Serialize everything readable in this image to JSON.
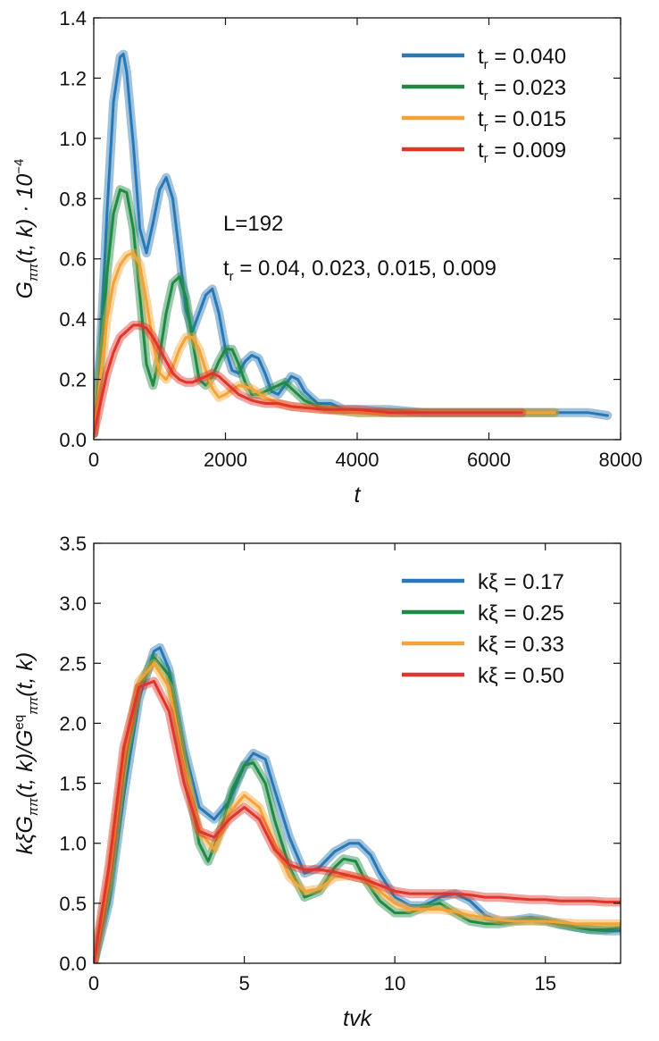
{
  "chart_data": [
    {
      "type": "line",
      "xlabel": "t",
      "ylabel_main": "G",
      "ylabel_sub": "ππ",
      "ylabel_rest": "(t, k) · 10",
      "ylabel_exp": "−4",
      "xlim": [
        0,
        8000
      ],
      "ylim": [
        0,
        1.4
      ],
      "xticks": [
        0,
        2000,
        4000,
        6000,
        8000
      ],
      "xtick_labels": [
        "0",
        "2000",
        "4000",
        "6000",
        "8000"
      ],
      "yticks": [
        0,
        0.2,
        0.4,
        0.6,
        0.8,
        1.0,
        1.2,
        1.4
      ],
      "ytick_labels": [
        "0.0",
        "0.2",
        "0.4",
        "0.6",
        "0.8",
        "1.0",
        "1.2",
        "1.4"
      ],
      "grid": false,
      "legend_position": "top-right",
      "annotations": [
        {
          "text": "L=192"
        },
        {
          "text": "t",
          "sub": "r",
          "rest": " = 0.04, 0.023, 0.015, 0.009"
        }
      ],
      "series": [
        {
          "name": "t",
          "name_sub": "r",
          "name_rest": " = 0.040",
          "color": "#2878b5",
          "x": [
            0,
            100,
            200,
            300,
            400,
            450,
            500,
            600,
            700,
            800,
            900,
            1000,
            1100,
            1200,
            1300,
            1400,
            1500,
            1600,
            1700,
            1800,
            1900,
            2000,
            2100,
            2200,
            2300,
            2400,
            2500,
            2600,
            2700,
            2800,
            2900,
            3000,
            3100,
            3200,
            3400,
            3600,
            3800,
            4000,
            4500,
            5000,
            5500,
            6000,
            6500,
            7000,
            7500,
            7800
          ],
          "y": [
            0.02,
            0.3,
            0.75,
            1.12,
            1.27,
            1.28,
            1.22,
            0.98,
            0.7,
            0.62,
            0.72,
            0.83,
            0.87,
            0.8,
            0.62,
            0.43,
            0.36,
            0.42,
            0.48,
            0.5,
            0.42,
            0.3,
            0.23,
            0.22,
            0.26,
            0.28,
            0.27,
            0.22,
            0.16,
            0.15,
            0.18,
            0.21,
            0.2,
            0.16,
            0.12,
            0.12,
            0.1,
            0.1,
            0.1,
            0.09,
            0.09,
            0.09,
            0.09,
            0.09,
            0.09,
            0.08
          ]
        },
        {
          "name": "t",
          "name_sub": "r",
          "name_rest": " = 0.023",
          "color": "#1e8a44",
          "x": [
            0,
            100,
            200,
            300,
            400,
            500,
            600,
            700,
            800,
            900,
            1000,
            1100,
            1200,
            1300,
            1400,
            1500,
            1600,
            1700,
            1800,
            1900,
            2000,
            2100,
            2200,
            2300,
            2400,
            2500,
            2600,
            2700,
            2800,
            2900,
            3000,
            3200,
            3400,
            3600,
            4000,
            4500,
            5000,
            5500,
            6000,
            6500,
            7000
          ],
          "y": [
            0.02,
            0.25,
            0.55,
            0.75,
            0.83,
            0.82,
            0.7,
            0.48,
            0.25,
            0.18,
            0.28,
            0.42,
            0.52,
            0.54,
            0.47,
            0.33,
            0.2,
            0.18,
            0.21,
            0.26,
            0.3,
            0.3,
            0.25,
            0.19,
            0.15,
            0.15,
            0.16,
            0.17,
            0.18,
            0.19,
            0.17,
            0.13,
            0.11,
            0.1,
            0.09,
            0.09,
            0.09,
            0.09,
            0.09,
            0.09,
            0.09
          ]
        },
        {
          "name": "t",
          "name_sub": "r",
          "name_rest": " = 0.015",
          "color": "#f5a336",
          "x": [
            0,
            100,
            200,
            300,
            400,
            500,
            600,
            700,
            800,
            900,
            1000,
            1100,
            1200,
            1300,
            1400,
            1500,
            1600,
            1700,
            1800,
            1900,
            2000,
            2200,
            2400,
            2600,
            2800,
            3000,
            3500,
            4000,
            4500,
            5000,
            5500,
            6000,
            6500,
            7000
          ],
          "y": [
            0.02,
            0.2,
            0.4,
            0.52,
            0.58,
            0.61,
            0.62,
            0.58,
            0.46,
            0.32,
            0.22,
            0.2,
            0.24,
            0.3,
            0.34,
            0.34,
            0.3,
            0.23,
            0.17,
            0.14,
            0.15,
            0.18,
            0.17,
            0.14,
            0.12,
            0.11,
            0.1,
            0.09,
            0.09,
            0.09,
            0.09,
            0.09,
            0.09,
            0.09
          ]
        },
        {
          "name": "t",
          "name_sub": "r",
          "name_rest": " = 0.009",
          "color": "#e0352b",
          "x": [
            0,
            100,
            200,
            300,
            400,
            500,
            600,
            700,
            800,
            900,
            1000,
            1100,
            1200,
            1300,
            1400,
            1500,
            1600,
            1700,
            1800,
            1900,
            2000,
            2200,
            2400,
            2600,
            2800,
            3000,
            3500,
            4000,
            4500,
            5000,
            5500,
            6000,
            6500
          ],
          "y": [
            0.02,
            0.12,
            0.22,
            0.29,
            0.34,
            0.36,
            0.38,
            0.38,
            0.37,
            0.34,
            0.3,
            0.26,
            0.22,
            0.2,
            0.19,
            0.19,
            0.2,
            0.21,
            0.22,
            0.21,
            0.19,
            0.15,
            0.13,
            0.12,
            0.12,
            0.11,
            0.1,
            0.1,
            0.09,
            0.09,
            0.09,
            0.09,
            0.09
          ]
        }
      ]
    },
    {
      "type": "line",
      "xlabel": "tvk",
      "ylabel_main": "kξG",
      "ylabel_sub": "ππ",
      "ylabel_rest": "(t, k)/G",
      "ylabel_sup2": "eq",
      "ylabel_sub2": "ππ",
      "ylabel_rest2": "(t, k)",
      "xlim": [
        0,
        17.5
      ],
      "ylim": [
        0,
        3.5
      ],
      "xticks": [
        0,
        5,
        10,
        15
      ],
      "xtick_labels": [
        "0",
        "5",
        "10",
        "15"
      ],
      "yticks": [
        0,
        0.5,
        1.0,
        1.5,
        2.0,
        2.5,
        3.0,
        3.5
      ],
      "ytick_labels": [
        "0.0",
        "0.5",
        "1.0",
        "1.5",
        "2.0",
        "2.5",
        "3.0",
        "3.5"
      ],
      "grid": false,
      "legend_position": "top-right",
      "series": [
        {
          "name": "kξ = 0.17",
          "color": "#2878b5",
          "x": [
            0,
            0.5,
            1,
            1.5,
            2,
            2.2,
            2.5,
            3,
            3.5,
            4,
            4.5,
            5,
            5.3,
            5.7,
            6,
            6.5,
            7,
            7.5,
            8,
            8.5,
            8.8,
            9.2,
            9.5,
            10,
            10.5,
            11,
            11.5,
            12,
            12.5,
            13,
            13.5,
            14,
            14.5,
            15,
            15.5,
            16,
            16.5,
            17,
            17.5
          ],
          "y": [
            0,
            0.5,
            1.4,
            2.2,
            2.6,
            2.63,
            2.45,
            1.8,
            1.3,
            1.2,
            1.35,
            1.65,
            1.75,
            1.7,
            1.45,
            1.05,
            0.75,
            0.8,
            0.93,
            1.0,
            1.0,
            0.9,
            0.75,
            0.55,
            0.48,
            0.48,
            0.55,
            0.58,
            0.52,
            0.4,
            0.35,
            0.36,
            0.38,
            0.36,
            0.33,
            0.3,
            0.28,
            0.27,
            0.27
          ]
        },
        {
          "name": "kξ = 0.25",
          "color": "#1e8a44",
          "x": [
            0,
            0.5,
            1,
            1.5,
            2,
            2.5,
            3,
            3.5,
            3.8,
            4.2,
            4.6,
            5,
            5.3,
            5.7,
            6,
            6.5,
            7,
            7.5,
            8,
            8.3,
            8.7,
            9,
            9.5,
            10,
            10.5,
            11,
            11.5,
            12,
            12.5,
            13,
            13.5,
            14,
            14.5,
            15,
            15.5,
            16,
            16.5,
            17,
            17.5
          ],
          "y": [
            0,
            0.6,
            1.6,
            2.3,
            2.55,
            2.4,
            1.7,
            1.0,
            0.85,
            1.1,
            1.45,
            1.65,
            1.67,
            1.5,
            1.2,
            0.8,
            0.55,
            0.6,
            0.8,
            0.87,
            0.85,
            0.7,
            0.52,
            0.42,
            0.42,
            0.47,
            0.5,
            0.42,
            0.35,
            0.33,
            0.33,
            0.35,
            0.36,
            0.35,
            0.32,
            0.3,
            0.28,
            0.28,
            0.3
          ]
        },
        {
          "name": "kξ = 0.33",
          "color": "#f5a336",
          "x": [
            0,
            0.5,
            1,
            1.5,
            2,
            2.5,
            3,
            3.5,
            4,
            4.5,
            5,
            5.5,
            6,
            6.5,
            7,
            7.5,
            8,
            8.5,
            9,
            9.5,
            10,
            10.5,
            11,
            11.5,
            12,
            12.5,
            13,
            13.5,
            14,
            14.5,
            15,
            15.5,
            16,
            16.5,
            17,
            17.5
          ],
          "y": [
            0,
            0.7,
            1.7,
            2.35,
            2.5,
            2.3,
            1.65,
            1.1,
            0.95,
            1.25,
            1.4,
            1.3,
            1.0,
            0.72,
            0.6,
            0.62,
            0.72,
            0.73,
            0.7,
            0.6,
            0.5,
            0.45,
            0.45,
            0.45,
            0.43,
            0.4,
            0.38,
            0.36,
            0.35,
            0.35,
            0.35,
            0.34,
            0.33,
            0.33,
            0.33,
            0.33
          ]
        },
        {
          "name": "kξ = 0.50",
          "color": "#e0352b",
          "x": [
            0,
            0.5,
            1,
            1.5,
            2,
            2.5,
            3,
            3.5,
            4,
            4.5,
            5,
            5.5,
            6,
            6.5,
            7,
            7.5,
            8,
            8.5,
            9,
            9.5,
            10,
            10.5,
            11,
            11.5,
            12,
            12.5,
            13,
            13.5,
            14,
            14.5,
            15,
            15.5,
            16,
            16.5,
            17,
            17.5
          ],
          "y": [
            0,
            0.8,
            1.8,
            2.3,
            2.35,
            2.1,
            1.5,
            1.1,
            1.05,
            1.2,
            1.3,
            1.2,
            0.95,
            0.82,
            0.78,
            0.78,
            0.76,
            0.73,
            0.7,
            0.65,
            0.6,
            0.58,
            0.58,
            0.58,
            0.58,
            0.57,
            0.55,
            0.55,
            0.54,
            0.53,
            0.53,
            0.52,
            0.52,
            0.52,
            0.51,
            0.51
          ]
        }
      ]
    }
  ]
}
